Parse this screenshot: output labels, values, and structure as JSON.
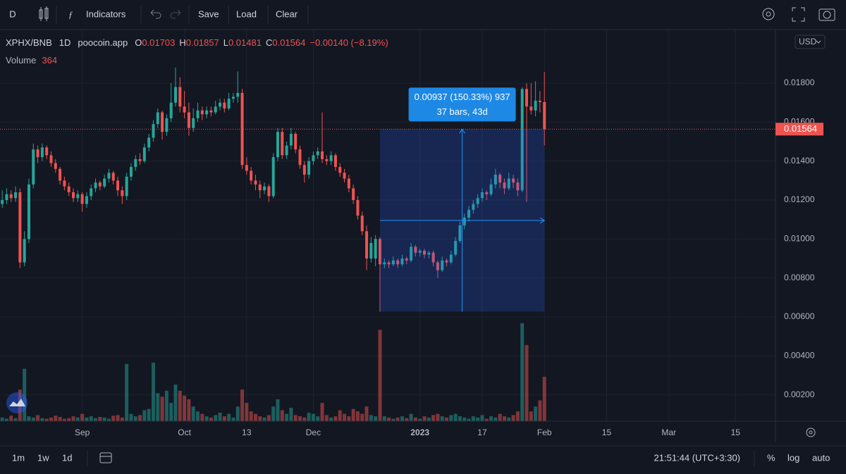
{
  "toolbar": {
    "symbol_button": "D",
    "indicators": "Indicators",
    "save": "Save",
    "load": "Load",
    "clear": "Clear"
  },
  "legend": {
    "symbol": "XPHX/BNB",
    "interval": "1D",
    "source": "poocoin.app",
    "o": "O",
    "h": "H",
    "l": "L",
    "c": "C",
    "change": "−0.00140 (−8.19%)",
    "volume": "Volume"
  },
  "currency": "USD",
  "measure": {
    "change": "0.00937 (150.33%) 937",
    "span": "37 bars, 43d"
  },
  "bottom_bar": {
    "ranges": [
      "1m",
      "1w",
      "1d"
    ],
    "clock": "21:51:44 (UTC+3:30)",
    "percent": "%",
    "log": "log",
    "auto": "auto"
  },
  "chart_data": {
    "type": "candlestick",
    "up_color": "#26a69a",
    "down_color": "#ef5350",
    "grid": true,
    "xlim": [
      -0.5,
      174
    ],
    "xticks": [
      {
        "value": 18,
        "label": "Sep"
      },
      {
        "value": 41,
        "label": "Oct"
      },
      {
        "value": 55,
        "label": "13"
      },
      {
        "value": 70,
        "label": "Dec"
      },
      {
        "value": 94,
        "label": "2023"
      },
      {
        "value": 108,
        "label": "17"
      },
      {
        "value": 122,
        "label": "Feb"
      },
      {
        "value": 136,
        "label": "15"
      },
      {
        "value": 150,
        "label": "Mar"
      },
      {
        "value": 165,
        "label": "15"
      }
    ],
    "ylim": [
      0.00065,
      0.02075
    ],
    "yticks": [
      {
        "value": 0.002,
        "label": "0.00200"
      },
      {
        "value": 0.004,
        "label": "0.00400"
      },
      {
        "value": 0.006,
        "label": "0.00600"
      },
      {
        "value": 0.008,
        "label": "0.00800"
      },
      {
        "value": 0.01,
        "label": "0.01000"
      },
      {
        "value": 0.012,
        "label": "0.01200"
      },
      {
        "value": 0.014,
        "label": "0.01400"
      },
      {
        "value": 0.016,
        "label": "0.01600"
      },
      {
        "value": 0.018,
        "label": "0.01800"
      }
    ],
    "volume_ylim": [
      0,
      1000
    ],
    "ohlc": [
      [
        0.0118,
        0.0125,
        0.0116,
        0.012
      ],
      [
        0.012,
        0.0126,
        0.0118,
        0.0123
      ],
      [
        0.0123,
        0.0125,
        0.0119,
        0.0121
      ],
      [
        0.0121,
        0.0127,
        0.0119,
        0.0124
      ],
      [
        0.0124,
        0.0126,
        0.0085,
        0.0088
      ],
      [
        0.0088,
        0.0104,
        0.0086,
        0.01
      ],
      [
        0.01,
        0.0131,
        0.0098,
        0.0128
      ],
      [
        0.0128,
        0.0149,
        0.0126,
        0.0146
      ],
      [
        0.0146,
        0.0148,
        0.0139,
        0.0142
      ],
      [
        0.0142,
        0.0149,
        0.014,
        0.0147
      ],
      [
        0.0147,
        0.0148,
        0.0141,
        0.0143
      ],
      [
        0.0143,
        0.0145,
        0.0137,
        0.0139
      ],
      [
        0.0139,
        0.0141,
        0.0134,
        0.0136
      ],
      [
        0.0136,
        0.0137,
        0.0128,
        0.013
      ],
      [
        0.013,
        0.0132,
        0.0125,
        0.0127
      ],
      [
        0.0127,
        0.0129,
        0.0122,
        0.0124
      ],
      [
        0.0124,
        0.0126,
        0.0119,
        0.0121
      ],
      [
        0.0121,
        0.0125,
        0.0119,
        0.0123
      ],
      [
        0.0123,
        0.0124,
        0.0114,
        0.0118
      ],
      [
        0.0118,
        0.0124,
        0.0116,
        0.0122
      ],
      [
        0.0122,
        0.0128,
        0.012,
        0.0126
      ],
      [
        0.0126,
        0.0131,
        0.0124,
        0.0129
      ],
      [
        0.0129,
        0.013,
        0.0125,
        0.0127
      ],
      [
        0.0127,
        0.0133,
        0.0126,
        0.0131
      ],
      [
        0.0131,
        0.0136,
        0.0129,
        0.0134
      ],
      [
        0.0134,
        0.0135,
        0.0128,
        0.013
      ],
      [
        0.013,
        0.0132,
        0.0122,
        0.0125
      ],
      [
        0.0125,
        0.0127,
        0.0118,
        0.0122
      ],
      [
        0.0122,
        0.0134,
        0.012,
        0.0132
      ],
      [
        0.0132,
        0.0139,
        0.013,
        0.0137
      ],
      [
        0.0137,
        0.0143,
        0.0135,
        0.0141
      ],
      [
        0.0141,
        0.0144,
        0.0138,
        0.014
      ],
      [
        0.014,
        0.0149,
        0.0139,
        0.0147
      ],
      [
        0.0147,
        0.0154,
        0.0145,
        0.0152
      ],
      [
        0.0152,
        0.0161,
        0.015,
        0.0159
      ],
      [
        0.0159,
        0.0167,
        0.0157,
        0.0165
      ],
      [
        0.0165,
        0.0166,
        0.0151,
        0.0155
      ],
      [
        0.0155,
        0.0164,
        0.0153,
        0.0162
      ],
      [
        0.0162,
        0.018,
        0.016,
        0.017
      ],
      [
        0.017,
        0.0188,
        0.0168,
        0.0178
      ],
      [
        0.0178,
        0.0183,
        0.0165,
        0.0168
      ],
      [
        0.0168,
        0.0176,
        0.0162,
        0.0165
      ],
      [
        0.0165,
        0.017,
        0.0153,
        0.0157
      ],
      [
        0.0157,
        0.0167,
        0.0155,
        0.0162
      ],
      [
        0.0162,
        0.017,
        0.016,
        0.0166
      ],
      [
        0.0166,
        0.0168,
        0.0161,
        0.0164
      ],
      [
        0.0164,
        0.0168,
        0.0162,
        0.0166
      ],
      [
        0.0166,
        0.0168,
        0.0163,
        0.0165
      ],
      [
        0.0165,
        0.0171,
        0.0164,
        0.0168
      ],
      [
        0.0168,
        0.0172,
        0.0166,
        0.017
      ],
      [
        0.017,
        0.0172,
        0.0165,
        0.0167
      ],
      [
        0.0167,
        0.0175,
        0.0166,
        0.0172
      ],
      [
        0.0172,
        0.0175,
        0.017,
        0.0173
      ],
      [
        0.0173,
        0.0186,
        0.017,
        0.0175
      ],
      [
        0.0175,
        0.0177,
        0.0136,
        0.0138
      ],
      [
        0.0138,
        0.0142,
        0.0133,
        0.0135
      ],
      [
        0.0135,
        0.0137,
        0.0128,
        0.013
      ],
      [
        0.013,
        0.0133,
        0.0125,
        0.0128
      ],
      [
        0.0128,
        0.013,
        0.0121,
        0.0125
      ],
      [
        0.0125,
        0.0129,
        0.0123,
        0.0127
      ],
      [
        0.0127,
        0.0128,
        0.0119,
        0.0122
      ],
      [
        0.0122,
        0.0144,
        0.0121,
        0.0142
      ],
      [
        0.0142,
        0.0157,
        0.014,
        0.0155
      ],
      [
        0.0155,
        0.0157,
        0.0141,
        0.0143
      ],
      [
        0.0143,
        0.015,
        0.0141,
        0.0148
      ],
      [
        0.0148,
        0.0157,
        0.0146,
        0.0154
      ],
      [
        0.0154,
        0.0155,
        0.0144,
        0.0146
      ],
      [
        0.0146,
        0.0148,
        0.0136,
        0.0138
      ],
      [
        0.0138,
        0.014,
        0.0129,
        0.0133
      ],
      [
        0.0133,
        0.0142,
        0.0131,
        0.014
      ],
      [
        0.014,
        0.0145,
        0.0138,
        0.0143
      ],
      [
        0.0143,
        0.0147,
        0.0141,
        0.0145
      ],
      [
        0.0145,
        0.0165,
        0.0139,
        0.0141
      ],
      [
        0.0141,
        0.0143,
        0.0138,
        0.014
      ],
      [
        0.014,
        0.0145,
        0.0138,
        0.0143
      ],
      [
        0.0143,
        0.0144,
        0.0135,
        0.0137
      ],
      [
        0.0137,
        0.0139,
        0.0132,
        0.0134
      ],
      [
        0.0134,
        0.0136,
        0.0129,
        0.0131
      ],
      [
        0.0131,
        0.0133,
        0.0124,
        0.0126
      ],
      [
        0.0126,
        0.0128,
        0.0118,
        0.012
      ],
      [
        0.012,
        0.0122,
        0.011,
        0.0112
      ],
      [
        0.0112,
        0.0114,
        0.0102,
        0.0104
      ],
      [
        0.0104,
        0.0107,
        0.0084,
        0.009
      ],
      [
        0.009,
        0.0101,
        0.0088,
        0.0098
      ],
      [
        0.009,
        0.0102,
        0.0086,
        0.01
      ],
      [
        0.01,
        0.0101,
        0.00627,
        0.0087
      ],
      [
        0.0087,
        0.009,
        0.0085,
        0.0088
      ],
      [
        0.0088,
        0.0089,
        0.0085,
        0.0087
      ],
      [
        0.0087,
        0.0091,
        0.0086,
        0.0089
      ],
      [
        0.0089,
        0.009,
        0.0085,
        0.0087
      ],
      [
        0.0087,
        0.0092,
        0.0086,
        0.009
      ],
      [
        0.009,
        0.0091,
        0.0087,
        0.0089
      ],
      [
        0.0089,
        0.0098,
        0.0088,
        0.0096
      ],
      [
        0.0096,
        0.0097,
        0.0091,
        0.0093
      ],
      [
        0.0093,
        0.0095,
        0.0091,
        0.0094
      ],
      [
        0.0094,
        0.0095,
        0.009,
        0.0092
      ],
      [
        0.0092,
        0.0094,
        0.009,
        0.0093
      ],
      [
        0.0093,
        0.0094,
        0.0086,
        0.0088
      ],
      [
        0.0088,
        0.0089,
        0.008,
        0.0084
      ],
      [
        0.0084,
        0.0091,
        0.0083,
        0.0089
      ],
      [
        0.0089,
        0.009,
        0.0086,
        0.0088
      ],
      [
        0.0088,
        0.0094,
        0.0087,
        0.0092
      ],
      [
        0.0092,
        0.0101,
        0.0091,
        0.0099
      ],
      [
        0.0099,
        0.0109,
        0.0098,
        0.0107
      ],
      [
        0.0107,
        0.0113,
        0.0105,
        0.0111
      ],
      [
        0.0111,
        0.0117,
        0.0109,
        0.0115
      ],
      [
        0.0115,
        0.012,
        0.0113,
        0.0118
      ],
      [
        0.0118,
        0.0123,
        0.0116,
        0.0121
      ],
      [
        0.0121,
        0.0126,
        0.0119,
        0.0124
      ],
      [
        0.0124,
        0.0125,
        0.012,
        0.0123
      ],
      [
        0.0123,
        0.0131,
        0.0122,
        0.0128
      ],
      [
        0.0128,
        0.0136,
        0.0126,
        0.0133
      ],
      [
        0.0133,
        0.0134,
        0.0126,
        0.0129
      ],
      [
        0.0129,
        0.0131,
        0.0123,
        0.0126
      ],
      [
        0.0126,
        0.0134,
        0.0125,
        0.0131
      ],
      [
        0.0131,
        0.0133,
        0.0126,
        0.0129
      ],
      [
        0.0129,
        0.0131,
        0.0122,
        0.0125
      ],
      [
        0.0125,
        0.0178,
        0.0124,
        0.0177
      ],
      [
        0.0177,
        0.018,
        0.0119,
        0.0168
      ],
      [
        0.0168,
        0.018,
        0.0164,
        0.0166
      ],
      [
        0.0166,
        0.0181,
        0.0163,
        0.0171
      ],
      [
        0.0171,
        0.0176,
        0.0165,
        0.01703
      ],
      [
        0.01703,
        0.01857,
        0.01481,
        0.01564
      ]
    ],
    "volumes": [
      30,
      20,
      45,
      25,
      260,
      430,
      40,
      30,
      50,
      25,
      20,
      30,
      45,
      35,
      20,
      25,
      40,
      30,
      60,
      30,
      40,
      25,
      35,
      30,
      20,
      45,
      50,
      30,
      470,
      60,
      40,
      50,
      90,
      100,
      480,
      230,
      200,
      250,
      150,
      300,
      250,
      210,
      180,
      120,
      80,
      60,
      40,
      30,
      50,
      70,
      40,
      60,
      30,
      120,
      260,
      150,
      80,
      60,
      40,
      30,
      50,
      120,
      180,
      90,
      60,
      110,
      50,
      40,
      30,
      70,
      60,
      40,
      150,
      50,
      30,
      40,
      90,
      60,
      40,
      100,
      80,
      60,
      120,
      50,
      40,
      750,
      40,
      30,
      20,
      30,
      40,
      25,
      60,
      30,
      20,
      40,
      30,
      50,
      60,
      40,
      30,
      50,
      60,
      40,
      30,
      20,
      40,
      30,
      50,
      20,
      40,
      30,
      60,
      40,
      30,
      50,
      80,
      805,
      625,
      80,
      120,
      170,
      364
    ]
  }
}
